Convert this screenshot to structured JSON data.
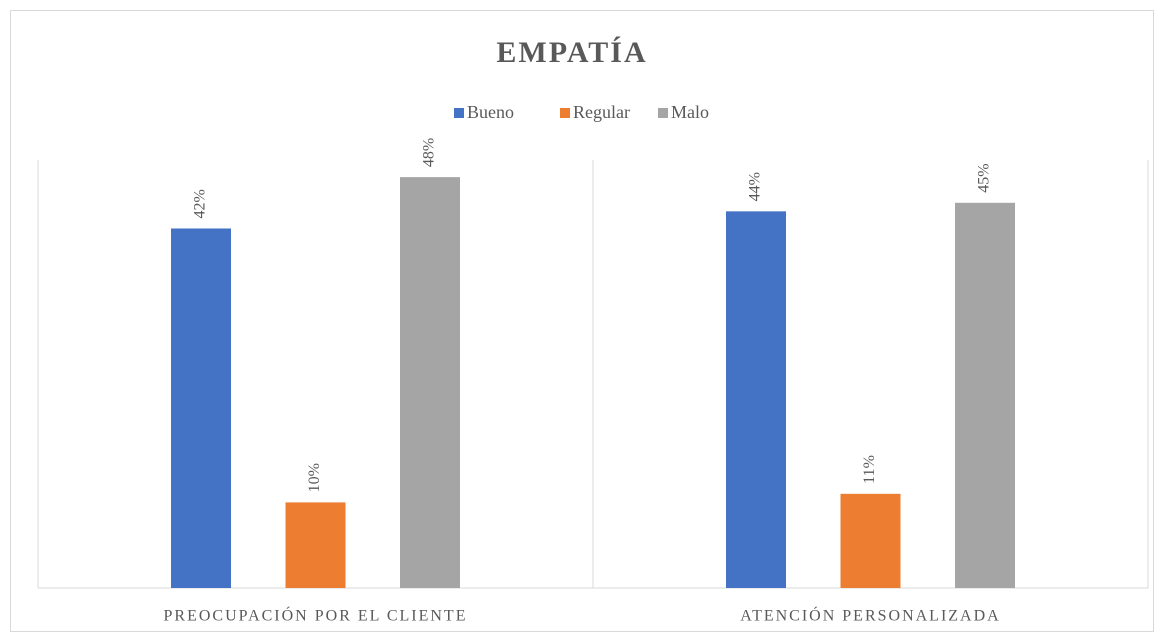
{
  "chart_data": {
    "type": "bar",
    "title": "EMPATÍA",
    "categories": [
      "PREOCUPACIÓN POR EL CLIENTE",
      "ATENCIÓN PERSONALIZADA"
    ],
    "series": [
      {
        "name": "Bueno",
        "color": "#4472c4",
        "values": [
          42,
          44
        ],
        "value_labels": [
          "42%",
          "44%"
        ]
      },
      {
        "name": "Regular",
        "color": "#ed7d31",
        "values": [
          10,
          11
        ],
        "value_labels": [
          "10%",
          "11%"
        ]
      },
      {
        "name": "Malo",
        "color": "#a5a5a5",
        "values": [
          48,
          45
        ],
        "value_labels": [
          "48%",
          "45%"
        ]
      }
    ],
    "ylim": [
      0,
      50
    ],
    "legend": "top"
  }
}
